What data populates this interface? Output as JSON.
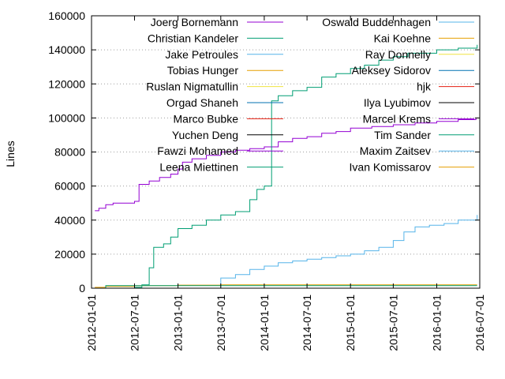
{
  "chart_data": {
    "type": "line",
    "ylabel": "Lines",
    "xlabel": "",
    "title": "",
    "ylim": [
      0,
      160000
    ],
    "xlim": [
      "2012-01-01",
      "2016-07-01"
    ],
    "y_ticks": [
      0,
      20000,
      40000,
      60000,
      80000,
      100000,
      120000,
      140000,
      160000
    ],
    "y_tick_labels": [
      "0",
      "20000",
      "40000",
      "60000",
      "80000",
      "100000",
      "120000",
      "140000",
      "160000"
    ],
    "x_ticks": [
      "2012-01-01",
      "2012-07-01",
      "2013-01-01",
      "2013-07-01",
      "2014-01-01",
      "2014-07-01",
      "2015-01-01",
      "2015-07-01",
      "2016-01-01",
      "2016-07-01"
    ],
    "x_tick_labels": [
      "2012-01-01",
      "2012-07-01",
      "2013-01-01",
      "2013-07-01",
      "2014-01-01",
      "2014-07-01",
      "2015-01-01",
      "2015-07-01",
      "2016-01-01",
      "2016-07-01"
    ],
    "grid": "horizontal dotted",
    "legend_placement": "top, two columns",
    "series": [
      {
        "name": "Joerg Bornemann",
        "color": "#9400d3",
        "points": [
          [
            "2012-01-15",
            45500
          ],
          [
            "2012-02-01",
            47000
          ],
          [
            "2012-03-01",
            49000
          ],
          [
            "2012-04-01",
            50000
          ],
          [
            "2012-06-01",
            50000
          ],
          [
            "2012-07-01",
            51000
          ],
          [
            "2012-07-20",
            61000
          ],
          [
            "2012-09-01",
            63000
          ],
          [
            "2012-10-15",
            65000
          ],
          [
            "2012-12-01",
            67000
          ],
          [
            "2013-01-01",
            70000
          ],
          [
            "2013-01-20",
            74000
          ],
          [
            "2013-03-01",
            76000
          ],
          [
            "2013-05-01",
            78000
          ],
          [
            "2013-07-01",
            80000
          ],
          [
            "2013-09-01",
            81000
          ],
          [
            "2013-11-01",
            82000
          ],
          [
            "2014-01-01",
            83000
          ],
          [
            "2014-03-01",
            86000
          ],
          [
            "2014-05-01",
            88000
          ],
          [
            "2014-07-01",
            89000
          ],
          [
            "2014-09-01",
            91000
          ],
          [
            "2014-11-01",
            92000
          ],
          [
            "2015-01-01",
            94000
          ],
          [
            "2015-04-01",
            95000
          ],
          [
            "2015-07-01",
            96000
          ],
          [
            "2015-10-01",
            97000
          ],
          [
            "2016-01-01",
            98000
          ],
          [
            "2016-04-01",
            99000
          ],
          [
            "2016-06-15",
            100000
          ]
        ]
      },
      {
        "name": "Christian Kandeler",
        "color": "#009e73",
        "points": [
          [
            "2012-01-15",
            0
          ],
          [
            "2012-07-01",
            500
          ],
          [
            "2012-08-01",
            2000
          ],
          [
            "2012-09-01",
            12000
          ],
          [
            "2012-09-20",
            24000
          ],
          [
            "2012-11-01",
            26000
          ],
          [
            "2012-12-01",
            30000
          ],
          [
            "2013-01-01",
            35000
          ],
          [
            "2013-03-01",
            37000
          ],
          [
            "2013-05-01",
            40000
          ],
          [
            "2013-07-01",
            43000
          ],
          [
            "2013-09-01",
            45000
          ],
          [
            "2013-11-01",
            52000
          ],
          [
            "2013-12-01",
            58000
          ],
          [
            "2014-01-01",
            60000
          ],
          [
            "2014-01-25",
            60000
          ],
          [
            "2014-02-01",
            110000
          ],
          [
            "2014-03-01",
            113000
          ],
          [
            "2014-05-01",
            116000
          ],
          [
            "2014-07-01",
            118000
          ],
          [
            "2014-09-01",
            124000
          ],
          [
            "2014-11-01",
            126000
          ],
          [
            "2015-01-01",
            129000
          ],
          [
            "2015-03-01",
            131000
          ],
          [
            "2015-05-01",
            134000
          ],
          [
            "2015-07-01",
            136000
          ],
          [
            "2015-09-01",
            138000
          ],
          [
            "2016-01-01",
            140000
          ],
          [
            "2016-04-01",
            141000
          ],
          [
            "2016-06-20",
            143000
          ]
        ]
      },
      {
        "name": "Jake Petroules",
        "color": "#56b4e9",
        "points": [
          [
            "2013-06-01",
            0
          ],
          [
            "2013-07-01",
            6000
          ],
          [
            "2013-09-01",
            8000
          ],
          [
            "2013-11-01",
            11000
          ],
          [
            "2014-01-01",
            13000
          ],
          [
            "2014-03-01",
            15000
          ],
          [
            "2014-05-01",
            16000
          ],
          [
            "2014-07-01",
            17000
          ],
          [
            "2014-09-01",
            18000
          ],
          [
            "2014-11-01",
            19000
          ],
          [
            "2015-01-01",
            20000
          ],
          [
            "2015-03-01",
            22000
          ],
          [
            "2015-05-01",
            24000
          ],
          [
            "2015-07-01",
            28000
          ],
          [
            "2015-08-15",
            33000
          ],
          [
            "2015-10-01",
            36000
          ],
          [
            "2015-12-01",
            37000
          ],
          [
            "2016-02-01",
            38000
          ],
          [
            "2016-04-01",
            40000
          ],
          [
            "2016-06-20",
            43000
          ]
        ]
      },
      {
        "name": "Tobias Hunger",
        "color": "#e69f00",
        "points": [
          [
            "2012-01-15",
            500
          ],
          [
            "2012-03-01",
            1000
          ],
          [
            "2012-07-01",
            1500
          ],
          [
            "2013-01-01",
            1800
          ],
          [
            "2013-07-01",
            2000
          ],
          [
            "2014-07-01",
            2000
          ],
          [
            "2016-06-20",
            2000
          ]
        ]
      },
      {
        "name": "Ruslan Nigmatullin",
        "color": "#f0e442",
        "points": [
          [
            "2012-01-15",
            0
          ],
          [
            "2016-06-20",
            0
          ]
        ]
      },
      {
        "name": "Orgad Shaneh",
        "color": "#0072b2",
        "points": [
          [
            "2012-01-15",
            0
          ],
          [
            "2016-06-20",
            200
          ]
        ]
      },
      {
        "name": "Marco Bubke",
        "color": "#e51e10",
        "points": [
          [
            "2012-01-15",
            0
          ],
          [
            "2016-06-20",
            0
          ]
        ]
      },
      {
        "name": "Yuchen Deng",
        "color": "#000000",
        "points": [
          [
            "2012-01-15",
            0
          ],
          [
            "2016-06-20",
            0
          ]
        ]
      },
      {
        "name": "Fawzi Mohamed",
        "color": "#9400d3",
        "points": [
          [
            "2012-01-15",
            0
          ],
          [
            "2016-06-20",
            0
          ]
        ]
      },
      {
        "name": "Leena Miettinen",
        "color": "#009e73",
        "points": [
          [
            "2012-02-01",
            0
          ],
          [
            "2012-03-01",
            1500
          ],
          [
            "2013-01-01",
            1500
          ],
          [
            "2016-06-20",
            1500
          ]
        ]
      },
      {
        "name": "Oswald Buddenhagen",
        "color": "#56b4e9",
        "points": [
          [
            "2012-01-15",
            0
          ],
          [
            "2016-06-20",
            0
          ]
        ]
      },
      {
        "name": "Kai Koehne",
        "color": "#e69f00",
        "points": [
          [
            "2012-01-15",
            0
          ],
          [
            "2016-06-20",
            0
          ]
        ]
      },
      {
        "name": "Ray Donnelly",
        "color": "#f0e442",
        "points": [
          [
            "2012-01-15",
            0
          ],
          [
            "2016-06-20",
            0
          ]
        ]
      },
      {
        "name": "Aleksey Sidorov",
        "color": "#0072b2",
        "points": [
          [
            "2012-01-15",
            0
          ],
          [
            "2016-06-20",
            0
          ]
        ]
      },
      {
        "name": "hjk",
        "color": "#e51e10",
        "points": [
          [
            "2012-01-15",
            0
          ],
          [
            "2016-06-20",
            0
          ]
        ]
      },
      {
        "name": "Ilya Lyubimov",
        "color": "#000000",
        "points": [
          [
            "2012-01-15",
            0
          ],
          [
            "2016-06-20",
            0
          ]
        ]
      },
      {
        "name": "Marcel Krems",
        "color": "#9400d3",
        "points": [
          [
            "2012-01-15",
            0
          ],
          [
            "2016-06-20",
            0
          ]
        ]
      },
      {
        "name": "Tim Sander",
        "color": "#009e73",
        "points": [
          [
            "2012-01-15",
            0
          ],
          [
            "2016-06-20",
            0
          ]
        ]
      },
      {
        "name": "Maxim Zaitsev",
        "color": "#56b4e9",
        "points": [
          [
            "2012-01-15",
            0
          ],
          [
            "2016-06-20",
            0
          ]
        ]
      },
      {
        "name": "Ivan Komissarov",
        "color": "#e69f00",
        "points": [
          [
            "2012-01-15",
            0
          ],
          [
            "2016-06-20",
            0
          ]
        ]
      }
    ]
  }
}
